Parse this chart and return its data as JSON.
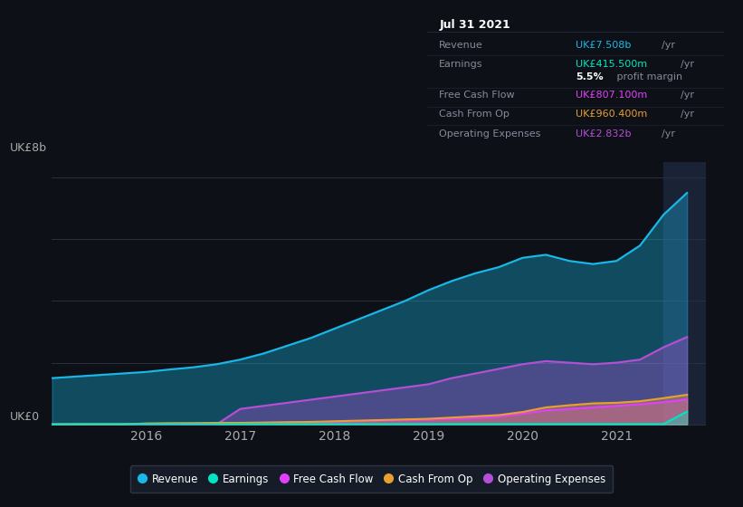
{
  "bg_color": "#0d1117",
  "plot_bg_color": "#0d1117",
  "ylabel": "UK£8b",
  "y0_label": "UK£0",
  "x_ticks": [
    2016,
    2017,
    2018,
    2019,
    2020,
    2021
  ],
  "x_min": 2015.0,
  "x_max": 2021.95,
  "y_min": -0.05,
  "y_max": 8.5,
  "grid_color": "#2a3040",
  "series": {
    "revenue": {
      "color": "#1ab8e8",
      "label": "Revenue",
      "values_x": [
        2015.0,
        2015.25,
        2015.5,
        2015.75,
        2016.0,
        2016.25,
        2016.5,
        2016.75,
        2017.0,
        2017.25,
        2017.5,
        2017.75,
        2018.0,
        2018.25,
        2018.5,
        2018.75,
        2019.0,
        2019.25,
        2019.5,
        2019.75,
        2020.0,
        2020.25,
        2020.5,
        2020.75,
        2021.0,
        2021.25,
        2021.5,
        2021.75
      ],
      "values_y": [
        1.5,
        1.55,
        1.6,
        1.65,
        1.7,
        1.78,
        1.85,
        1.95,
        2.1,
        2.3,
        2.55,
        2.8,
        3.1,
        3.4,
        3.7,
        4.0,
        4.35,
        4.65,
        4.9,
        5.1,
        5.4,
        5.5,
        5.3,
        5.2,
        5.3,
        5.8,
        6.8,
        7.508
      ]
    },
    "operating_expenses": {
      "color": "#b44fd6",
      "label": "Operating Expenses",
      "values_x": [
        2015.0,
        2015.25,
        2015.5,
        2015.75,
        2016.0,
        2016.25,
        2016.5,
        2016.75,
        2017.0,
        2017.25,
        2017.5,
        2017.75,
        2018.0,
        2018.25,
        2018.5,
        2018.75,
        2019.0,
        2019.25,
        2019.5,
        2019.75,
        2020.0,
        2020.25,
        2020.5,
        2020.75,
        2021.0,
        2021.25,
        2021.5,
        2021.75
      ],
      "values_y": [
        0.0,
        0.0,
        0.0,
        0.0,
        0.0,
        0.0,
        0.0,
        0.0,
        0.5,
        0.6,
        0.7,
        0.8,
        0.9,
        1.0,
        1.1,
        1.2,
        1.3,
        1.5,
        1.65,
        1.8,
        1.95,
        2.05,
        2.0,
        1.95,
        2.0,
        2.1,
        2.5,
        2.832
      ]
    },
    "free_cash_flow": {
      "color": "#e040fb",
      "label": "Free Cash Flow",
      "values_x": [
        2015.0,
        2015.25,
        2015.5,
        2015.75,
        2016.0,
        2016.25,
        2016.5,
        2016.75,
        2017.0,
        2017.25,
        2017.5,
        2017.75,
        2018.0,
        2018.25,
        2018.5,
        2018.75,
        2019.0,
        2019.25,
        2019.5,
        2019.75,
        2020.0,
        2020.25,
        2020.5,
        2020.75,
        2021.0,
        2021.25,
        2021.5,
        2021.75
      ],
      "values_y": [
        0.0,
        0.0,
        0.0,
        0.0,
        0.02,
        0.02,
        0.03,
        0.03,
        0.04,
        0.05,
        0.06,
        0.07,
        0.08,
        0.1,
        0.12,
        0.14,
        0.15,
        0.18,
        0.2,
        0.25,
        0.35,
        0.45,
        0.5,
        0.55,
        0.6,
        0.65,
        0.72,
        0.807
      ]
    },
    "cash_from_op": {
      "color": "#e8a030",
      "label": "Cash From Op",
      "values_x": [
        2015.0,
        2015.25,
        2015.5,
        2015.75,
        2016.0,
        2016.25,
        2016.5,
        2016.75,
        2017.0,
        2017.25,
        2017.5,
        2017.75,
        2018.0,
        2018.25,
        2018.5,
        2018.75,
        2019.0,
        2019.25,
        2019.5,
        2019.75,
        2020.0,
        2020.25,
        2020.5,
        2020.75,
        2021.0,
        2021.25,
        2021.5,
        2021.75
      ],
      "values_y": [
        0.0,
        0.0,
        0.0,
        0.0,
        0.03,
        0.04,
        0.04,
        0.05,
        0.05,
        0.06,
        0.07,
        0.08,
        0.1,
        0.12,
        0.14,
        0.16,
        0.18,
        0.22,
        0.26,
        0.3,
        0.4,
        0.55,
        0.62,
        0.68,
        0.7,
        0.75,
        0.85,
        0.9604
      ]
    },
    "earnings": {
      "color": "#00e5c0",
      "label": "Earnings",
      "values_x": [
        2015.0,
        2015.25,
        2015.5,
        2015.75,
        2016.0,
        2016.25,
        2016.5,
        2016.75,
        2017.0,
        2017.25,
        2017.5,
        2017.75,
        2018.0,
        2018.25,
        2018.5,
        2018.75,
        2019.0,
        2019.25,
        2019.5,
        2019.75,
        2020.0,
        2020.25,
        2020.5,
        2020.75,
        2021.0,
        2021.25,
        2021.5,
        2021.75
      ],
      "values_y": [
        0.0,
        0.01,
        0.01,
        0.01,
        0.01,
        0.01,
        0.01,
        0.01,
        0.01,
        0.01,
        0.01,
        0.01,
        0.01,
        0.01,
        0.01,
        0.01,
        0.01,
        0.01,
        0.01,
        0.01,
        0.01,
        0.01,
        0.01,
        0.01,
        0.01,
        0.01,
        0.01,
        0.415
      ]
    }
  },
  "info_box": {
    "title": "Jul 31 2021",
    "rows": [
      {
        "label": "Revenue",
        "value": "UK£7.508b",
        "unit": "/yr",
        "value_color": "#1ab8e8",
        "bold": false
      },
      {
        "label": "Earnings",
        "value": "UK£415.500m",
        "unit": "/yr",
        "value_color": "#00e5c0",
        "bold": false
      },
      {
        "label": "",
        "value": "5.5%",
        "unit": " profit margin",
        "value_color": "#ffffff",
        "bold": true
      },
      {
        "label": "Free Cash Flow",
        "value": "UK£807.100m",
        "unit": "/yr",
        "value_color": "#e040fb",
        "bold": false
      },
      {
        "label": "Cash From Op",
        "value": "UK£960.400m",
        "unit": "/yr",
        "value_color": "#e8a030",
        "bold": false
      },
      {
        "label": "Operating Expenses",
        "value": "UK£2.832b",
        "unit": "/yr",
        "value_color": "#b44fd6",
        "bold": false
      }
    ]
  },
  "legend": [
    {
      "label": "Revenue",
      "color": "#1ab8e8"
    },
    {
      "label": "Earnings",
      "color": "#00e5c0"
    },
    {
      "label": "Free Cash Flow",
      "color": "#e040fb"
    },
    {
      "label": "Cash From Op",
      "color": "#e8a030"
    },
    {
      "label": "Operating Expenses",
      "color": "#b44fd6"
    }
  ],
  "highlight_x": 2021.5,
  "highlight_color": "#1a2235"
}
